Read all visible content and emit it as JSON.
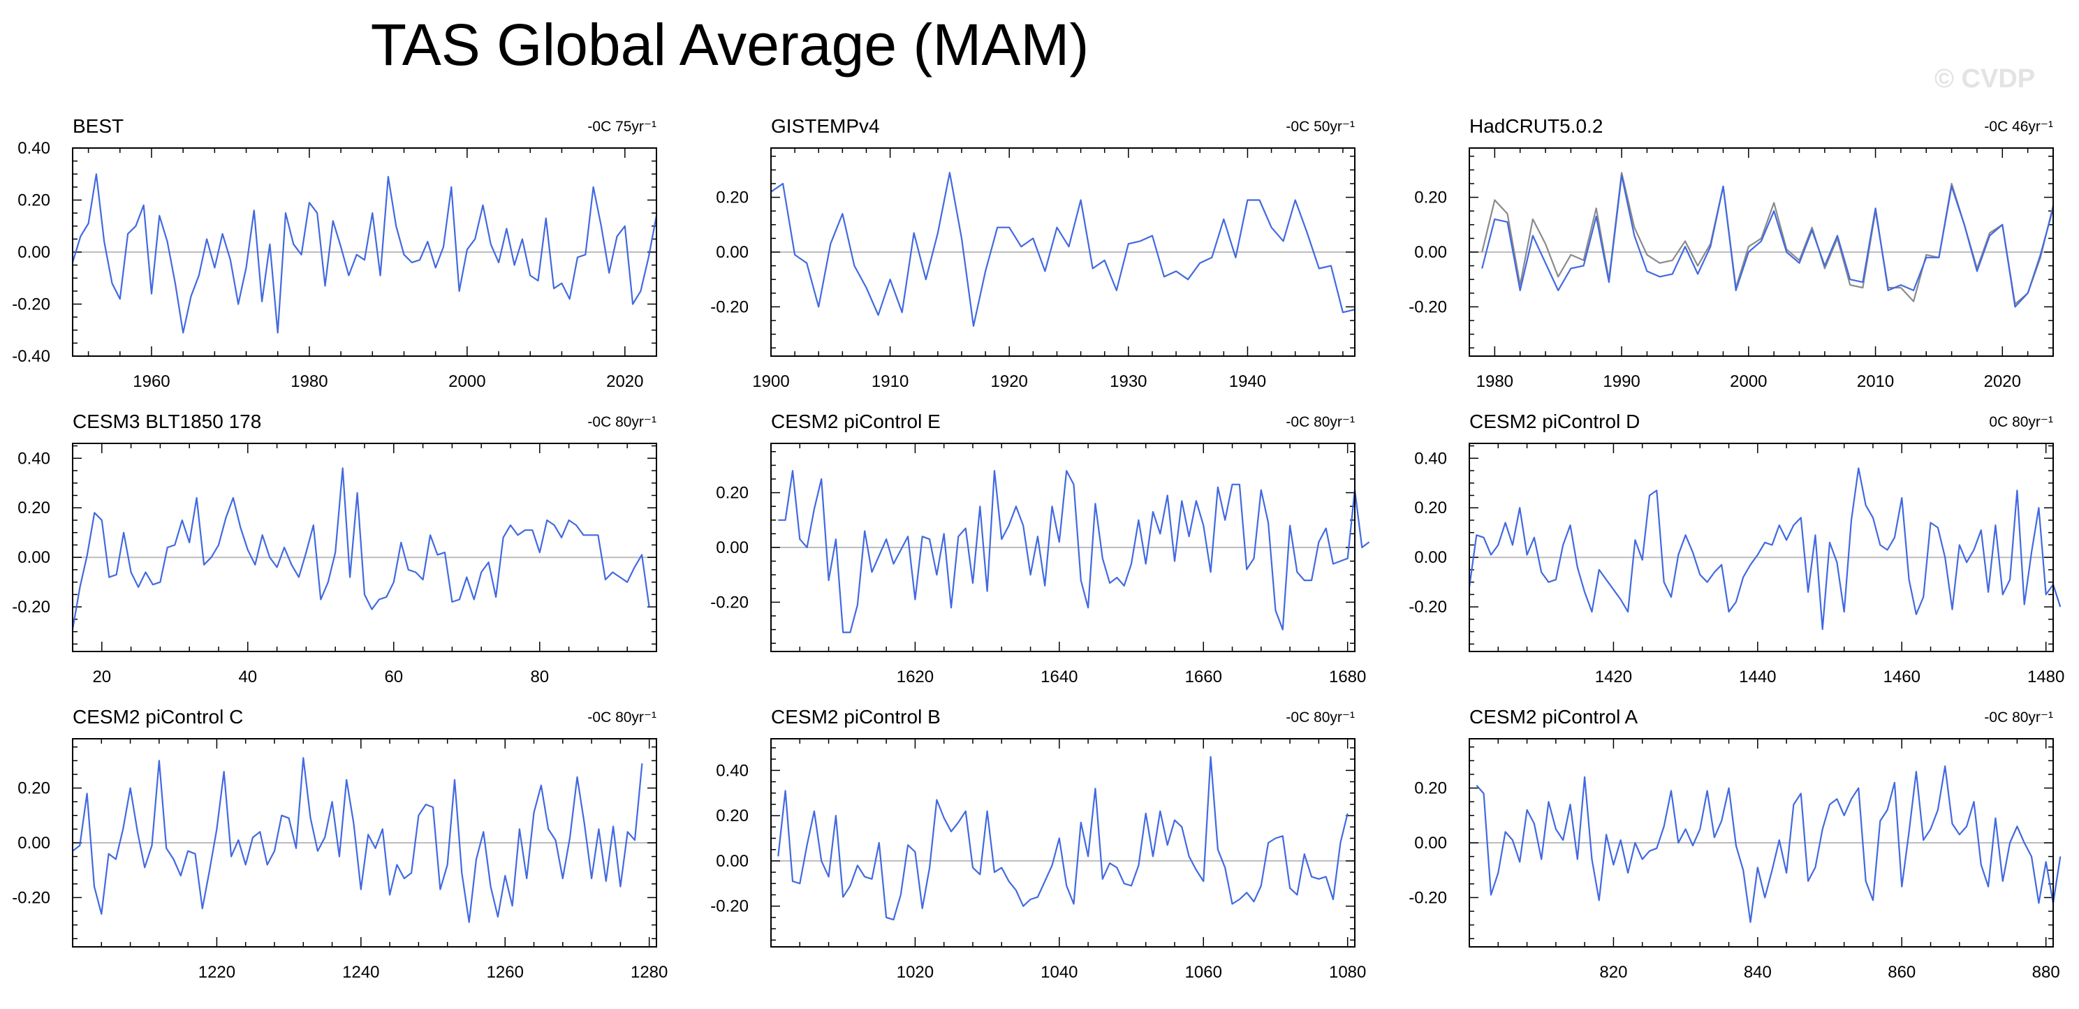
{
  "title": "TAS Global Average (MAM)",
  "credit": "© CVDP",
  "colors": {
    "series": "#4169E1",
    "reference": "#8a8a8a",
    "zero_line": "#bdbdbd",
    "axes": "#000000"
  },
  "chart_data": [
    {
      "type": "line",
      "title": "BEST",
      "trend": "-0C 75yr⁻¹",
      "xlim": [
        1950,
        2024
      ],
      "ylim": [
        -0.4,
        0.4
      ],
      "xticks": [
        1960,
        1980,
        2000,
        2020
      ],
      "yticks": [
        -0.4,
        -0.2,
        0.0,
        0.2,
        0.4
      ],
      "ytick_labels": [
        "-0.40",
        "-0.20",
        "0.00",
        "0.20",
        "0.40"
      ],
      "series": [
        {
          "x_start": 1950,
          "values": [
            -0.04,
            0.06,
            0.11,
            0.3,
            0.04,
            -0.12,
            -0.18,
            0.07,
            0.1,
            0.18,
            -0.16,
            0.14,
            0.04,
            -0.12,
            -0.31,
            -0.17,
            -0.09,
            0.05,
            -0.06,
            0.07,
            -0.03,
            -0.2,
            -0.06,
            0.16,
            -0.19,
            0.03,
            -0.31,
            0.15,
            0.03,
            -0.01,
            0.19,
            0.15,
            -0.13,
            0.12,
            0.02,
            -0.09,
            -0.01,
            -0.03,
            0.15,
            -0.09,
            0.29,
            0.1,
            -0.01,
            -0.04,
            -0.03,
            0.04,
            -0.06,
            0.02,
            0.25,
            -0.15,
            0.01,
            0.05,
            0.18,
            0.03,
            -0.04,
            0.09,
            -0.05,
            0.05,
            -0.09,
            -0.11,
            0.13,
            -0.14,
            -0.12,
            -0.18,
            -0.02,
            -0.01,
            0.25,
            0.1,
            -0.08,
            0.06,
            0.1,
            -0.2,
            -0.15,
            -0.02,
            0.14
          ]
        }
      ]
    },
    {
      "type": "line",
      "title": "GISTEMPv4",
      "trend": "-0C 50yr⁻¹",
      "xlim": [
        1900,
        1949
      ],
      "ylim": [
        -0.38,
        0.38
      ],
      "xticks": [
        1900,
        1910,
        1920,
        1930,
        1940
      ],
      "yticks": [
        -0.2,
        0.0,
        0.2
      ],
      "ytick_labels": [
        "-0.20",
        "0.00",
        "0.20"
      ],
      "series": [
        {
          "x_start": 1900,
          "values": [
            0.22,
            0.25,
            -0.01,
            -0.04,
            -0.2,
            0.03,
            0.14,
            -0.05,
            -0.13,
            -0.23,
            -0.1,
            -0.22,
            0.07,
            -0.1,
            0.07,
            0.29,
            0.05,
            -0.27,
            -0.07,
            0.09,
            0.09,
            0.02,
            0.05,
            -0.07,
            0.09,
            0.02,
            0.19,
            -0.06,
            -0.03,
            -0.14,
            0.03,
            0.04,
            0.06,
            -0.09,
            -0.07,
            -0.1,
            -0.04,
            -0.02,
            0.12,
            -0.02,
            0.19,
            0.19,
            0.09,
            0.04,
            0.19,
            0.07,
            -0.06,
            -0.05,
            -0.22,
            -0.21
          ]
        }
      ]
    },
    {
      "type": "line",
      "title": "HadCRUT5.0.2",
      "trend": "-0C 46yr⁻¹",
      "xlim": [
        1978,
        2024
      ],
      "ylim": [
        -0.38,
        0.38
      ],
      "xticks": [
        1980,
        1990,
        2000,
        2010,
        2020
      ],
      "yticks": [
        -0.2,
        0.0,
        0.2
      ],
      "ytick_labels": [
        "-0.20",
        "0.00",
        "0.20"
      ],
      "series": [
        {
          "x_start": 1979,
          "values": [
            -0.06,
            0.12,
            0.11,
            -0.14,
            0.06,
            -0.04,
            -0.14,
            -0.06,
            -0.05,
            0.13,
            -0.11,
            0.28,
            0.06,
            -0.07,
            -0.09,
            -0.08,
            0.02,
            -0.08,
            0.02,
            0.24,
            -0.14,
            0.0,
            0.04,
            0.15,
            0.0,
            -0.04,
            0.08,
            -0.05,
            0.06,
            -0.1,
            -0.11,
            0.16,
            -0.14,
            -0.12,
            -0.14,
            -0.02,
            -0.02,
            0.24,
            0.1,
            -0.07,
            0.06,
            0.1,
            -0.2,
            -0.15,
            -0.01,
            0.16
          ]
        },
        {
          "x_start": 1979,
          "values": [
            0.0,
            0.19,
            0.14,
            -0.12,
            0.12,
            0.03,
            -0.09,
            -0.01,
            -0.03,
            0.16,
            -0.1,
            0.29,
            0.09,
            -0.01,
            -0.04,
            -0.03,
            0.04,
            -0.05,
            0.03,
            0.24,
            -0.13,
            0.02,
            0.05,
            0.18,
            0.01,
            -0.03,
            0.09,
            -0.06,
            0.05,
            -0.12,
            -0.13,
            0.15,
            -0.13,
            -0.13,
            -0.18,
            -0.01,
            -0.02,
            0.25,
            0.1,
            -0.06,
            0.07,
            0.1,
            -0.19,
            -0.15,
            -0.02,
            0.17
          ]
        }
      ]
    },
    {
      "type": "line",
      "title": "CESM3 BLT1850 178",
      "trend": "-0C 80yr⁻¹",
      "xlim": [
        16,
        96
      ],
      "ylim": [
        -0.38,
        0.46
      ],
      "xticks": [
        20,
        40,
        60,
        80
      ],
      "yticks": [
        -0.2,
        0.0,
        0.2,
        0.4
      ],
      "ytick_labels": [
        "-0.20",
        "0.00",
        "0.20",
        "0.40"
      ],
      "series": [
        {
          "x_start": 16,
          "values": [
            -0.29,
            -0.12,
            0.01,
            0.18,
            0.15,
            -0.08,
            -0.07,
            0.1,
            -0.06,
            -0.12,
            -0.06,
            -0.11,
            -0.1,
            0.04,
            0.05,
            0.15,
            0.06,
            0.24,
            -0.03,
            0.0,
            0.05,
            0.16,
            0.24,
            0.12,
            0.03,
            -0.03,
            0.09,
            0.0,
            -0.04,
            0.04,
            -0.03,
            -0.08,
            0.02,
            0.13,
            -0.17,
            -0.1,
            0.02,
            0.36,
            -0.08,
            0.26,
            -0.15,
            -0.21,
            -0.17,
            -0.16,
            -0.1,
            0.06,
            -0.05,
            -0.06,
            -0.09,
            0.09,
            0.01,
            0.02,
            -0.18,
            -0.17,
            -0.08,
            -0.17,
            -0.06,
            -0.02,
            -0.16,
            0.08,
            0.13,
            0.09,
            0.11,
            0.11,
            0.02,
            0.15,
            0.13,
            0.08,
            0.15,
            0.13,
            0.09,
            0.09,
            0.09,
            -0.09,
            -0.06,
            -0.08,
            -0.1,
            -0.04,
            0.01,
            -0.2
          ]
        }
      ]
    },
    {
      "type": "line",
      "title": "CESM2 piControl E",
      "trend": "-0C 80yr⁻¹",
      "xlim": [
        1600,
        1681
      ],
      "ylim": [
        -0.38,
        0.38
      ],
      "xticks": [
        1620,
        1640,
        1660,
        1680
      ],
      "yticks": [
        -0.2,
        0.0,
        0.2
      ],
      "ytick_labels": [
        "-0.20",
        "0.00",
        "0.20"
      ],
      "series": [
        {
          "x_start": 1601,
          "values": [
            0.1,
            0.1,
            0.28,
            0.03,
            0.0,
            0.14,
            0.25,
            -0.12,
            0.03,
            -0.31,
            -0.31,
            -0.21,
            0.06,
            -0.09,
            -0.03,
            0.03,
            -0.06,
            -0.01,
            0.04,
            -0.19,
            0.04,
            0.03,
            -0.1,
            0.05,
            -0.22,
            0.04,
            0.07,
            -0.13,
            0.15,
            -0.16,
            0.28,
            0.03,
            0.08,
            0.15,
            0.08,
            -0.1,
            0.04,
            -0.14,
            0.15,
            0.02,
            0.28,
            0.23,
            -0.12,
            -0.22,
            0.16,
            -0.04,
            -0.13,
            -0.11,
            -0.14,
            -0.06,
            0.1,
            -0.06,
            0.13,
            0.05,
            0.19,
            -0.05,
            0.17,
            0.04,
            0.17,
            0.08,
            -0.09,
            0.22,
            0.1,
            0.23,
            0.23,
            -0.08,
            -0.04,
            0.21,
            0.09,
            -0.23,
            -0.3,
            0.08,
            -0.09,
            -0.12,
            -0.12,
            0.02,
            0.07,
            -0.06,
            -0.05,
            -0.04,
            0.21,
            0.0,
            0.02
          ]
        }
      ]
    },
    {
      "type": "line",
      "title": "CESM2 piControl D",
      "trend": "0C 80yr⁻¹",
      "xlim": [
        1400,
        1481
      ],
      "ylim": [
        -0.38,
        0.46
      ],
      "xticks": [
        1420,
        1440,
        1460,
        1480
      ],
      "yticks": [
        -0.2,
        0.0,
        0.2,
        0.4
      ],
      "ytick_labels": [
        "-0.20",
        "0.00",
        "0.20",
        "0.40"
      ],
      "series": [
        {
          "x_start": 1400,
          "values": [
            -0.12,
            0.09,
            0.08,
            0.01,
            0.05,
            0.14,
            0.05,
            0.2,
            0.01,
            0.08,
            -0.06,
            -0.1,
            -0.09,
            0.05,
            0.13,
            -0.04,
            -0.14,
            -0.22,
            -0.05,
            -0.09,
            -0.13,
            -0.17,
            -0.22,
            0.07,
            -0.01,
            0.25,
            0.27,
            -0.1,
            -0.16,
            0.01,
            0.09,
            0.02,
            -0.07,
            -0.1,
            -0.06,
            -0.03,
            -0.22,
            -0.18,
            -0.08,
            -0.03,
            0.01,
            0.06,
            0.05,
            0.13,
            0.07,
            0.13,
            0.16,
            -0.14,
            0.09,
            -0.29,
            0.06,
            -0.02,
            -0.22,
            0.15,
            0.36,
            0.21,
            0.16,
            0.05,
            0.03,
            0.08,
            0.24,
            -0.09,
            -0.23,
            -0.16,
            0.14,
            0.12,
            0.0,
            -0.21,
            0.05,
            -0.02,
            0.03,
            0.11,
            -0.14,
            0.13,
            -0.15,
            -0.09,
            0.27,
            -0.19,
            0.02,
            0.2,
            -0.15,
            -0.11,
            -0.2
          ]
        }
      ]
    },
    {
      "type": "line",
      "title": "CESM2 piControl C",
      "trend": "-0C 80yr⁻¹",
      "xlim": [
        1200,
        1281
      ],
      "ylim": [
        -0.38,
        0.38
      ],
      "xticks": [
        1220,
        1240,
        1260,
        1280
      ],
      "yticks": [
        -0.2,
        0.0,
        0.2
      ],
      "ytick_labels": [
        "-0.20",
        "0.00",
        "0.20"
      ],
      "series": [
        {
          "x_start": 1200,
          "values": [
            -0.03,
            -0.01,
            0.18,
            -0.16,
            -0.26,
            -0.04,
            -0.06,
            0.05,
            0.2,
            0.04,
            -0.09,
            -0.01,
            0.3,
            -0.02,
            -0.06,
            -0.12,
            -0.03,
            -0.04,
            -0.24,
            -0.1,
            0.05,
            0.26,
            -0.05,
            0.01,
            -0.08,
            0.02,
            0.04,
            -0.08,
            -0.03,
            0.1,
            0.09,
            -0.02,
            0.31,
            0.09,
            -0.03,
            0.02,
            0.15,
            -0.05,
            0.23,
            0.07,
            -0.17,
            0.03,
            -0.02,
            0.05,
            -0.19,
            -0.08,
            -0.13,
            -0.11,
            0.1,
            0.14,
            0.13,
            -0.17,
            -0.08,
            0.23,
            -0.11,
            -0.29,
            -0.06,
            0.04,
            -0.16,
            -0.27,
            -0.12,
            -0.23,
            0.05,
            -0.13,
            0.11,
            0.21,
            0.05,
            0.01,
            -0.13,
            0.02,
            0.24,
            0.07,
            -0.13,
            0.05,
            -0.14,
            0.06,
            -0.16,
            0.04,
            0.01,
            0.29
          ]
        }
      ]
    },
    {
      "type": "line",
      "title": "CESM2 piControl B",
      "trend": "-0C 80yr⁻¹",
      "xlim": [
        1000,
        1081
      ],
      "ylim": [
        -0.38,
        0.54
      ],
      "xticks": [
        1020,
        1040,
        1060,
        1080
      ],
      "yticks": [
        -0.2,
        0.0,
        0.2,
        0.4
      ],
      "ytick_labels": [
        "-0.20",
        "0.00",
        "0.20",
        "0.40"
      ],
      "series": [
        {
          "x_start": 1001,
          "values": [
            0.02,
            0.31,
            -0.09,
            -0.1,
            0.07,
            0.22,
            0.0,
            -0.07,
            0.2,
            -0.16,
            -0.11,
            -0.02,
            -0.07,
            -0.08,
            0.08,
            -0.25,
            -0.26,
            -0.15,
            0.07,
            0.04,
            -0.21,
            -0.03,
            0.27,
            0.19,
            0.13,
            0.17,
            0.22,
            -0.03,
            -0.06,
            0.22,
            -0.05,
            -0.03,
            -0.09,
            -0.13,
            -0.2,
            -0.17,
            -0.16,
            -0.09,
            -0.02,
            0.1,
            -0.11,
            -0.19,
            0.17,
            0.02,
            0.32,
            -0.08,
            -0.01,
            -0.03,
            -0.1,
            -0.11,
            -0.02,
            0.21,
            0.02,
            0.22,
            0.07,
            0.18,
            0.15,
            0.02,
            -0.04,
            -0.09,
            0.46,
            0.05,
            -0.03,
            -0.19,
            -0.17,
            -0.14,
            -0.18,
            -0.11,
            0.08,
            0.1,
            0.11,
            -0.12,
            -0.15,
            0.03,
            -0.07,
            -0.08,
            -0.07,
            -0.17,
            0.08,
            0.21
          ]
        }
      ]
    },
    {
      "type": "line",
      "title": "CESM2 piControl A",
      "trend": "-0C 80yr⁻¹",
      "xlim": [
        800,
        881
      ],
      "ylim": [
        -0.38,
        0.38
      ],
      "xticks": [
        820,
        840,
        860,
        880
      ],
      "yticks": [
        -0.2,
        0.0,
        0.2
      ],
      "ytick_labels": [
        "-0.20",
        "0.00",
        "0.20"
      ],
      "series": [
        {
          "x_start": 801,
          "values": [
            0.21,
            0.18,
            -0.19,
            -0.11,
            0.04,
            0.01,
            -0.07,
            0.12,
            0.07,
            -0.06,
            0.15,
            0.05,
            0.01,
            0.14,
            -0.06,
            0.24,
            -0.06,
            -0.21,
            0.03,
            -0.08,
            0.01,
            -0.11,
            0.0,
            -0.06,
            -0.03,
            -0.02,
            0.06,
            0.19,
            0.0,
            0.05,
            -0.01,
            0.05,
            0.19,
            0.02,
            0.08,
            0.2,
            -0.01,
            -0.1,
            -0.29,
            -0.09,
            -0.2,
            -0.1,
            0.01,
            -0.11,
            0.14,
            0.18,
            -0.14,
            -0.09,
            0.05,
            0.14,
            0.16,
            0.1,
            0.16,
            0.2,
            -0.14,
            -0.21,
            0.08,
            0.12,
            0.22,
            -0.16,
            0.04,
            0.26,
            0.01,
            0.05,
            0.12,
            0.28,
            0.07,
            0.03,
            0.06,
            0.15,
            -0.08,
            -0.16,
            0.09,
            -0.14,
            0.0,
            0.06,
            0.0,
            -0.05,
            -0.22,
            -0.07,
            -0.22,
            -0.05
          ]
        }
      ]
    }
  ]
}
